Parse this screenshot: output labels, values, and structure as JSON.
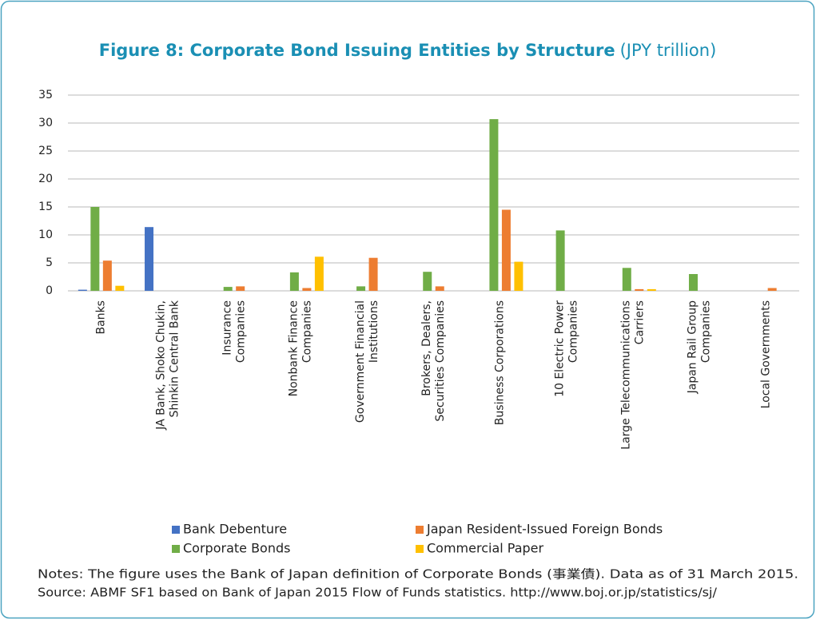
{
  "chart_data": {
    "type": "bar",
    "title": "Figure 8: Corporate Bond Issuing Entities by Structure",
    "subtitle": "(JPY trillion)",
    "categories": [
      [
        "Banks"
      ],
      [
        "JA Bank, Shoko Chukin,",
        "Shinkin Central Bank"
      ],
      [
        "Insurance",
        "Companies"
      ],
      [
        "Nonbank Finance",
        "Companies"
      ],
      [
        "Government Financial",
        "Institutions"
      ],
      [
        "Brokers, Dealers,",
        "Securities Companies"
      ],
      [
        "Business Corporations"
      ],
      [
        "10 Electric Power",
        "Companies"
      ],
      [
        "Large Telecommunications",
        "Carriers"
      ],
      [
        "Japan Rail Group",
        "Companies"
      ],
      [
        "Local Governments"
      ]
    ],
    "series": [
      {
        "name": "Bank Debenture",
        "color": "#4472c4",
        "values": [
          0.2,
          11.4,
          0,
          0,
          0,
          0,
          0,
          0,
          0,
          0,
          0
        ]
      },
      {
        "name": "Corporate Bonds",
        "color": "#70ad47",
        "values": [
          15,
          0,
          0.7,
          3.3,
          0.8,
          3.4,
          30.7,
          10.8,
          4.1,
          3.0,
          0
        ]
      },
      {
        "name": "Japan Resident-Issued Foreign Bonds",
        "color": "#ed7d31",
        "values": [
          5.4,
          0,
          0.8,
          0.5,
          5.9,
          0.8,
          14.5,
          0,
          0.3,
          0,
          0.5
        ]
      },
      {
        "name": "Commercial Paper",
        "color": "#ffc000",
        "values": [
          0.9,
          0,
          0,
          6.1,
          0,
          0,
          5.2,
          0,
          0.3,
          0,
          0
        ]
      }
    ],
    "ylim": [
      0,
      35
    ],
    "yticks": [
      0,
      5,
      10,
      15,
      20,
      25,
      30,
      35
    ],
    "grid": true,
    "notes": [
      "Notes: The figure uses the Bank of Japan definition of Corporate Bonds (事業債). Data as of 31 March 2015.",
      "Source: ABMF SF1 based on Bank of Japan 2015 Flow of Funds statistics. http://www.boj.or.jp/statistics/sj/"
    ]
  }
}
